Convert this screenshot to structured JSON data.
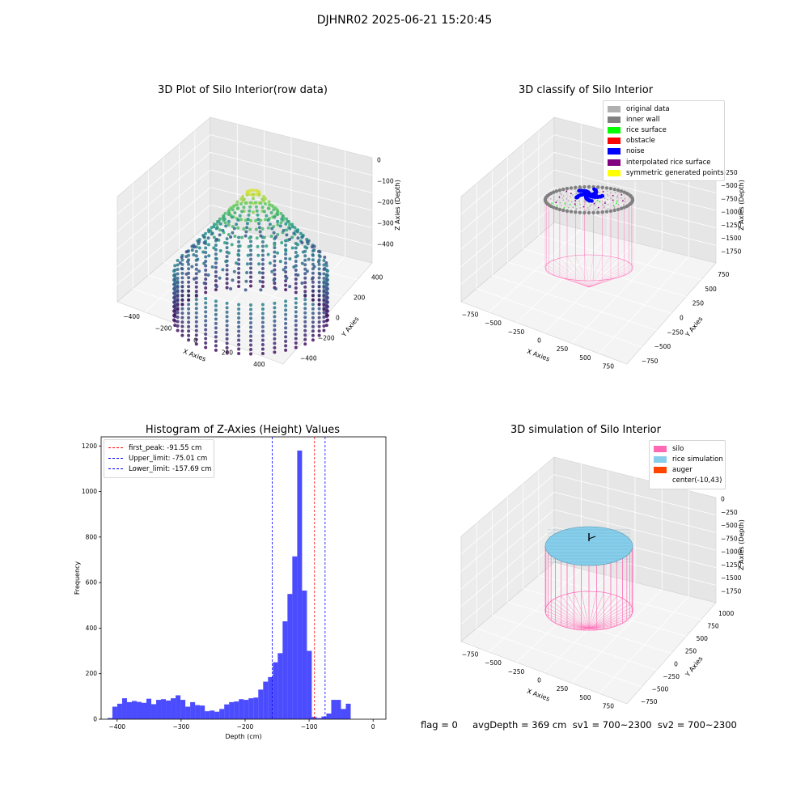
{
  "figure": {
    "suptitle": "DJHNR02 2025-06-21 15:20:45",
    "footer": "flag = 0     avgDepth = 369 cm  sv1 = 700~2300  sv2 = 700~2300"
  },
  "colors": {
    "silo": "#ff69b4",
    "rice": "#87ceeb",
    "hist_bar": "#0000ff",
    "first_peak_line": "#ff0000",
    "limit_line": "#0000ff",
    "pane": "#f2f2f2",
    "grid": "#d9d9d9"
  },
  "chart_data": [
    {
      "type": "scatter3d",
      "title": "3D Plot of Silo Interior(row data)",
      "xlabel": "X Axies",
      "ylabel": "Y Axies",
      "zlabel": "Z Axies (Depth)",
      "x_ticks": [
        "−400",
        "−200",
        "0",
        "200",
        "400"
      ],
      "y_ticks": [
        "−400",
        "−200",
        "0",
        "200",
        "400"
      ],
      "z_ticks": [
        "0",
        "−100",
        "−200",
        "−300",
        "−400"
      ],
      "xlim": [
        -450,
        450
      ],
      "ylim": [
        -450,
        450
      ],
      "zlim": [
        -450,
        0
      ],
      "colormap": "viridis",
      "description_points": "silo cylinder radius ~450, rice cone peak near z=-60"
    },
    {
      "type": "scatter3d",
      "title": "3D classify of Silo Interior",
      "xlabel": "X Axies",
      "ylabel": "Y Axies",
      "zlabel": "Z Axies (Depth)",
      "x_ticks": [
        "−750",
        "−500",
        "−250",
        "0",
        "250",
        "500",
        "750"
      ],
      "y_ticks": [
        "−750",
        "−500",
        "−250",
        "0",
        "250",
        "500",
        "750"
      ],
      "z_ticks": [
        "0",
        "−250",
        "−500",
        "−750",
        "−1000",
        "−1250",
        "−1500",
        "−1750"
      ],
      "legend": [
        {
          "label": "original data",
          "color": "#b0b0b0"
        },
        {
          "label": "inner wall",
          "color": "#808080"
        },
        {
          "label": "rice surface",
          "color": "#00ff00"
        },
        {
          "label": "obstacle",
          "color": "#ff0000"
        },
        {
          "label": "noise",
          "color": "#0000ff"
        },
        {
          "label": "interpolated rice surface",
          "color": "#800080"
        },
        {
          "label": "symmetric generated points",
          "color": "#ffff00"
        }
      ]
    },
    {
      "type": "bar",
      "title": "Histogram of Z-Axies (Height) Values",
      "xlabel": "Depth (cm)",
      "ylabel": "Frequency",
      "xlim": [
        -425,
        20
      ],
      "ylim": [
        0,
        1240
      ],
      "x_ticks": [
        -400,
        -300,
        -200,
        -100,
        0
      ],
      "y_ticks": [
        0,
        200,
        400,
        600,
        800,
        1000,
        1200
      ],
      "bin_start": -415,
      "bin_width": 7.6,
      "values": [
        5,
        55,
        68,
        92,
        75,
        80,
        76,
        72,
        90,
        66,
        85,
        88,
        82,
        92,
        105,
        85,
        55,
        75,
        62,
        60,
        35,
        38,
        33,
        45,
        65,
        75,
        78,
        88,
        85,
        92,
        95,
        130,
        165,
        185,
        250,
        290,
        430,
        550,
        715,
        1180,
        565,
        300,
        10,
        5,
        12,
        25,
        85,
        85,
        45,
        68
      ],
      "vlines": [
        {
          "label": "first_peak: -91.55 cm",
          "x": -91.55,
          "color": "#ff0000"
        },
        {
          "label": "Upper_limit: -75.01 cm",
          "x": -75.01,
          "color": "#0000ff"
        },
        {
          "label": "Lower_limit: -157.69 cm",
          "x": -157.69,
          "color": "#0000ff"
        }
      ],
      "legend_position": "top-left"
    },
    {
      "type": "surface3d",
      "title": "3D simulation of Silo Interior",
      "xlabel": "X Axies",
      "ylabel": "Y Axies",
      "zlabel": "Z Axies (Depth)",
      "x_ticks": [
        "−750",
        "−500",
        "−250",
        "0",
        "250",
        "500",
        "750"
      ],
      "y_ticks": [
        "−750",
        "−500",
        "−250",
        "0",
        "250",
        "500",
        "750",
        "1000"
      ],
      "z_ticks": [
        "0",
        "−250",
        "−500",
        "−750",
        "−1000",
        "−1250",
        "−1500",
        "−1750"
      ],
      "legend": [
        {
          "label": "silo",
          "color": "#ff69b4"
        },
        {
          "label": "rice simulation",
          "color": "#87ceeb"
        },
        {
          "label": "auger",
          "color": "#ff4500"
        },
        {
          "label": "center(-10,43)",
          "color": "#ffffff"
        }
      ]
    }
  ]
}
